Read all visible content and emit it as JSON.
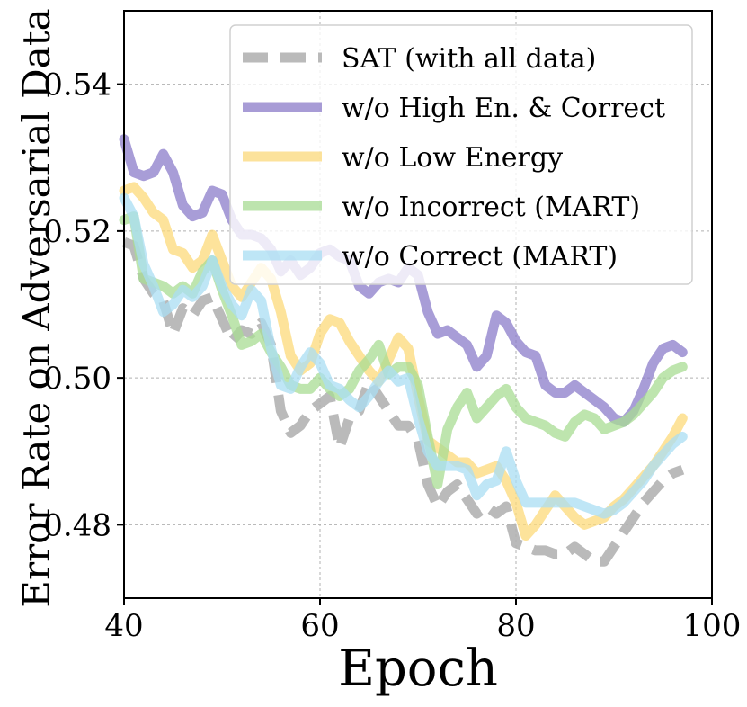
{
  "chart_data": {
    "type": "line",
    "title": "",
    "xlabel": "Epoch",
    "ylabel": "Error Rate on Adversarial Data",
    "xlim": [
      40,
      100
    ],
    "ylim": [
      0.47,
      0.55
    ],
    "xticks": [
      40,
      60,
      80,
      100
    ],
    "xtick_labels": [
      "40",
      "60",
      "80",
      "100"
    ],
    "yticks": [
      0.48,
      0.5,
      0.52,
      0.54
    ],
    "ytick_labels": [
      "0.48",
      "0.50",
      "0.52",
      "0.54"
    ],
    "grid": true,
    "legend_position": "top-right",
    "x": [
      40,
      41,
      42,
      43,
      44,
      45,
      46,
      47,
      48,
      49,
      50,
      51,
      52,
      53,
      54,
      55,
      56,
      57,
      58,
      59,
      60,
      61,
      62,
      63,
      64,
      65,
      66,
      67,
      68,
      69,
      70,
      71,
      72,
      73,
      74,
      75,
      76,
      77,
      78,
      79,
      80,
      81,
      82,
      83,
      84,
      85,
      86,
      87,
      88,
      89,
      90,
      91,
      92,
      93,
      94,
      95,
      96,
      97
    ],
    "series": [
      {
        "name": "SAT (with all data)",
        "color": "#b3b3b3",
        "style": "dashed",
        "values": [
          0.5185,
          0.518,
          0.5135,
          0.5115,
          0.5105,
          0.506,
          0.5095,
          0.5085,
          0.5105,
          0.511,
          0.508,
          0.505,
          0.5065,
          0.506,
          0.5075,
          0.5045,
          0.4955,
          0.4925,
          0.4935,
          0.4955,
          0.4965,
          0.4975,
          0.4905,
          0.4945,
          0.4955,
          0.4995,
          0.4975,
          0.4955,
          0.4935,
          0.4935,
          0.4915,
          0.4855,
          0.4825,
          0.4845,
          0.4855,
          0.4835,
          0.4815,
          0.4825,
          0.4815,
          0.4825,
          0.4775,
          0.477,
          0.4765,
          0.4765,
          0.476,
          0.476,
          0.477,
          0.476,
          0.475,
          0.475,
          0.477,
          0.479,
          0.481,
          0.483,
          0.4845,
          0.486,
          0.487,
          0.4875
        ]
      },
      {
        "name": "w/o High En. & Correct",
        "color": "#8b7cc9",
        "style": "solid",
        "values": [
          0.5325,
          0.528,
          0.5275,
          0.528,
          0.5305,
          0.528,
          0.5235,
          0.522,
          0.5225,
          0.5255,
          0.525,
          0.5215,
          0.5195,
          0.5195,
          0.519,
          0.5175,
          0.5145,
          0.516,
          0.514,
          0.515,
          0.517,
          0.5175,
          0.5165,
          0.516,
          0.5125,
          0.5115,
          0.513,
          0.5135,
          0.513,
          0.515,
          0.514,
          0.509,
          0.506,
          0.5065,
          0.5055,
          0.5045,
          0.5015,
          0.503,
          0.5085,
          0.5075,
          0.505,
          0.5035,
          0.503,
          0.499,
          0.498,
          0.498,
          0.499,
          0.498,
          0.497,
          0.496,
          0.4945,
          0.494,
          0.4955,
          0.4985,
          0.502,
          0.504,
          0.5045,
          0.5035
        ]
      },
      {
        "name": "w/o Low Energy",
        "color": "#fcd97a",
        "style": "solid",
        "values": [
          0.5255,
          0.526,
          0.5245,
          0.5225,
          0.5215,
          0.5175,
          0.517,
          0.515,
          0.516,
          0.5195,
          0.516,
          0.5125,
          0.511,
          0.513,
          0.515,
          0.5135,
          0.509,
          0.503,
          0.501,
          0.502,
          0.506,
          0.508,
          0.5075,
          0.505,
          0.503,
          0.501,
          0.4995,
          0.5025,
          0.5055,
          0.504,
          0.4975,
          0.4915,
          0.4905,
          0.4895,
          0.4885,
          0.4885,
          0.487,
          0.4875,
          0.488,
          0.486,
          0.483,
          0.4785,
          0.48,
          0.482,
          0.484,
          0.4825,
          0.481,
          0.48,
          0.4805,
          0.481,
          0.4825,
          0.4835,
          0.485,
          0.4865,
          0.488,
          0.49,
          0.492,
          0.4945
        ]
      },
      {
        "name": "w/o Incorrect (MART)",
        "color": "#a8dc93",
        "style": "solid",
        "values": [
          0.5215,
          0.522,
          0.5135,
          0.513,
          0.5125,
          0.5115,
          0.5125,
          0.5115,
          0.5145,
          0.516,
          0.512,
          0.5085,
          0.5045,
          0.505,
          0.506,
          0.5035,
          0.5015,
          0.499,
          0.4985,
          0.4985,
          0.5,
          0.4985,
          0.4975,
          0.4985,
          0.501,
          0.5025,
          0.5045,
          0.5005,
          0.5015,
          0.5015,
          0.499,
          0.492,
          0.4855,
          0.493,
          0.496,
          0.498,
          0.4945,
          0.496,
          0.4975,
          0.4985,
          0.496,
          0.4945,
          0.494,
          0.4935,
          0.4925,
          0.492,
          0.494,
          0.495,
          0.4945,
          0.493,
          0.4935,
          0.494,
          0.495,
          0.4965,
          0.498,
          0.5,
          0.501,
          0.5015
        ]
      },
      {
        "name": "w/o Correct (MART)",
        "color": "#a9def3",
        "style": "solid",
        "values": [
          0.5245,
          0.522,
          0.5155,
          0.5125,
          0.509,
          0.51,
          0.512,
          0.511,
          0.5125,
          0.516,
          0.5125,
          0.51,
          0.5085,
          0.512,
          0.5105,
          0.504,
          0.499,
          0.4985,
          0.5015,
          0.5035,
          0.502,
          0.499,
          0.4985,
          0.497,
          0.496,
          0.4975,
          0.4995,
          0.501,
          0.4995,
          0.5,
          0.4945,
          0.49,
          0.488,
          0.488,
          0.488,
          0.4875,
          0.484,
          0.4855,
          0.486,
          0.49,
          0.486,
          0.483,
          0.483,
          0.483,
          0.483,
          0.483,
          0.483,
          0.4825,
          0.482,
          0.4815,
          0.482,
          0.483,
          0.4845,
          0.486,
          0.488,
          0.4895,
          0.491,
          0.492
        ]
      }
    ]
  }
}
